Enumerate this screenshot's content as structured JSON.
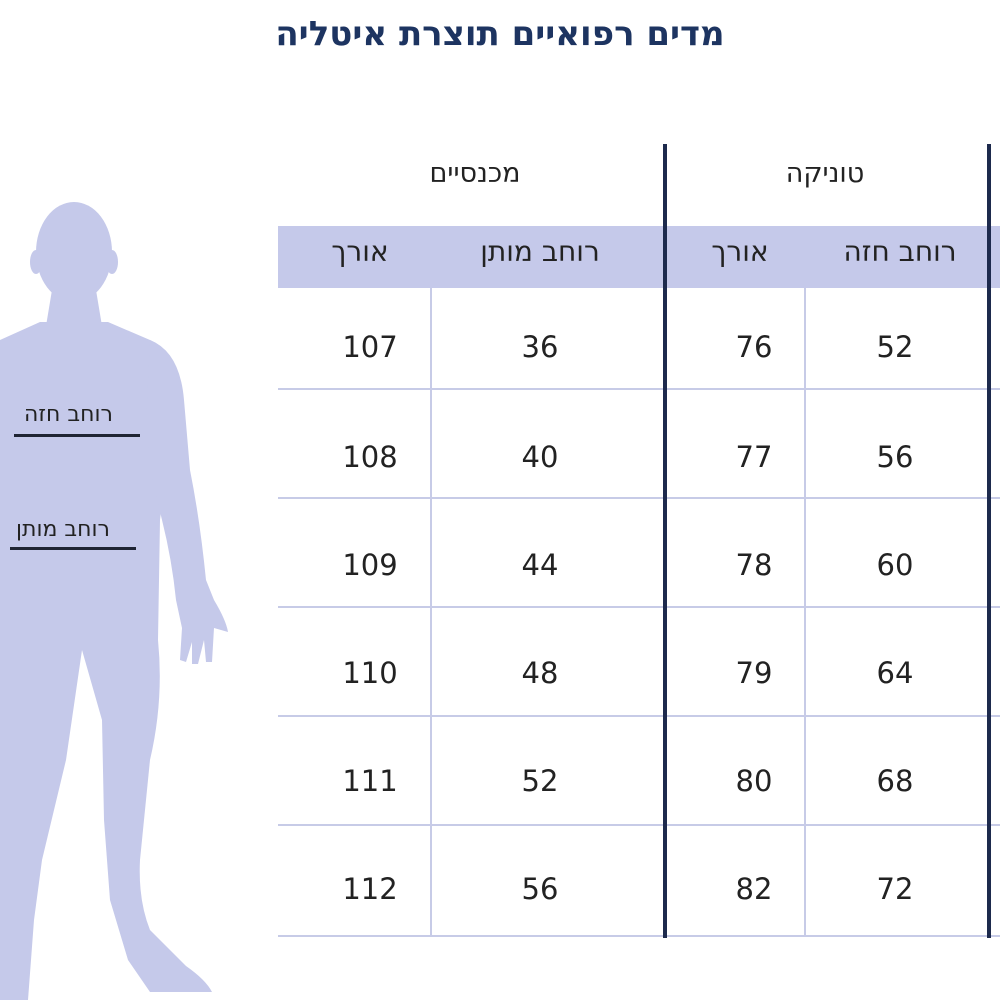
{
  "title": "מדים רפואיים תוצרת איטליה",
  "figure": {
    "chest_label": "רוחב חזה",
    "waist_label": "רוחב מותן",
    "fill_color": "#c5c9ea"
  },
  "groups": {
    "pants": "מכנסיים",
    "tunic": "טוניקה"
  },
  "headers": {
    "pants_length": "אורך",
    "pants_waist": "רוחב מותן",
    "tunic_length": "אורך",
    "tunic_chest": "רוחב חזה"
  },
  "rows": [
    {
      "pants_length": "107",
      "pants_waist": "36",
      "tunic_length": "76",
      "tunic_chest": "52"
    },
    {
      "pants_length": "108",
      "pants_waist": "40",
      "tunic_length": "77",
      "tunic_chest": "56"
    },
    {
      "pants_length": "109",
      "pants_waist": "44",
      "tunic_length": "78",
      "tunic_chest": "60"
    },
    {
      "pants_length": "110",
      "pants_waist": "48",
      "tunic_length": "79",
      "tunic_chest": "64"
    },
    {
      "pants_length": "111",
      "pants_waist": "52",
      "tunic_length": "80",
      "tunic_chest": "68"
    },
    {
      "pants_length": "112",
      "pants_waist": "56",
      "tunic_length": "82",
      "tunic_chest": "72"
    }
  ],
  "colors": {
    "header_band": "#c5c9ea",
    "title": "#1d3461",
    "divider": "#1d2a4d",
    "grid": "#c7cbe7"
  }
}
